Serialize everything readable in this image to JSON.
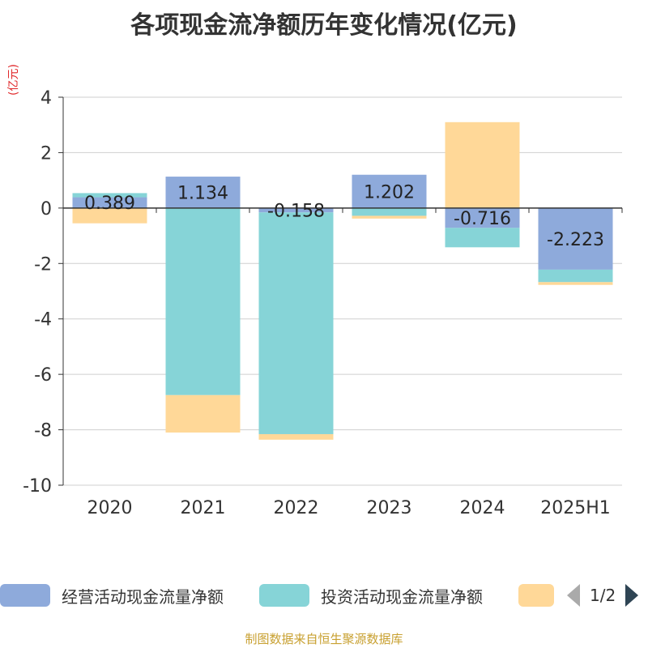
{
  "title": "各项现金流净额历年变化情况(亿元)",
  "unit_label": "(亿元)",
  "source": "制图数据来自恒生聚源数据库",
  "legend": {
    "items": [
      {
        "name": "经营活动现金流量净额",
        "color": "#8eaadb"
      },
      {
        "name": "投资活动现金流量净额",
        "color": "#86d4d7"
      },
      {
        "name": "",
        "color": "#ffd898"
      }
    ],
    "page": "1/2"
  },
  "chart_data": {
    "type": "bar",
    "stacked": true,
    "categories": [
      "2020",
      "2021",
      "2022",
      "2023",
      "2024",
      "2025H1"
    ],
    "ylim": [
      -10,
      4
    ],
    "yticks": [
      4,
      2,
      0,
      -2,
      -4,
      -6,
      -8,
      -10
    ],
    "grid": true,
    "legend_position": "bottom",
    "series": [
      {
        "name": "经营活动现金流量净额",
        "color": "#8eaadb",
        "values": [
          0.389,
          1.134,
          -0.158,
          1.202,
          -0.716,
          -2.223
        ],
        "labels": [
          "0.389",
          "1.134",
          "-0.158",
          "1.202",
          "-0.716",
          "-2.223"
        ]
      },
      {
        "name": "投资活动现金流量净额",
        "color": "#86d4d7",
        "values": [
          0.15,
          -6.75,
          -8.0,
          -0.28,
          -0.7,
          -0.45
        ]
      },
      {
        "color": "#ffd898",
        "values": [
          -0.55,
          -1.35,
          -0.2,
          -0.1,
          3.1,
          -0.1
        ]
      }
    ]
  }
}
